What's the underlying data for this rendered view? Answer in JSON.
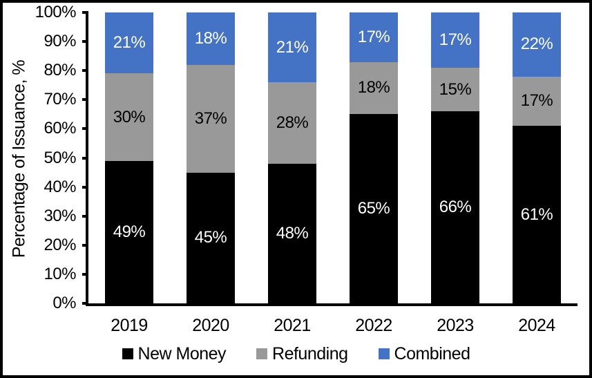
{
  "chart_data": {
    "type": "bar",
    "stacked": true,
    "categories": [
      "2019",
      "2020",
      "2021",
      "2022",
      "2023",
      "2024"
    ],
    "series": [
      {
        "name": "New Money",
        "color": "#000000",
        "label_color": "#FFFFFF",
        "values": [
          49,
          45,
          48,
          65,
          66,
          61
        ]
      },
      {
        "name": "Refunding",
        "color": "#999999",
        "label_color": "#000000",
        "values": [
          30,
          37,
          28,
          18,
          15,
          17
        ]
      },
      {
        "name": "Combined",
        "color": "#4472C4",
        "label_color": "#FFFFFF",
        "values": [
          21,
          18,
          21,
          17,
          17,
          22
        ]
      }
    ],
    "title": "",
    "xlabel": "",
    "ylabel": "Percentage of Issuance, %",
    "ylim": [
      0,
      100
    ],
    "ytick_step": 10,
    "ytick_suffix": "%",
    "value_label_suffix": "%",
    "grid": false,
    "legend_position": "bottom",
    "axis_color": "#000000",
    "background_color": "#FFFFFF"
  }
}
